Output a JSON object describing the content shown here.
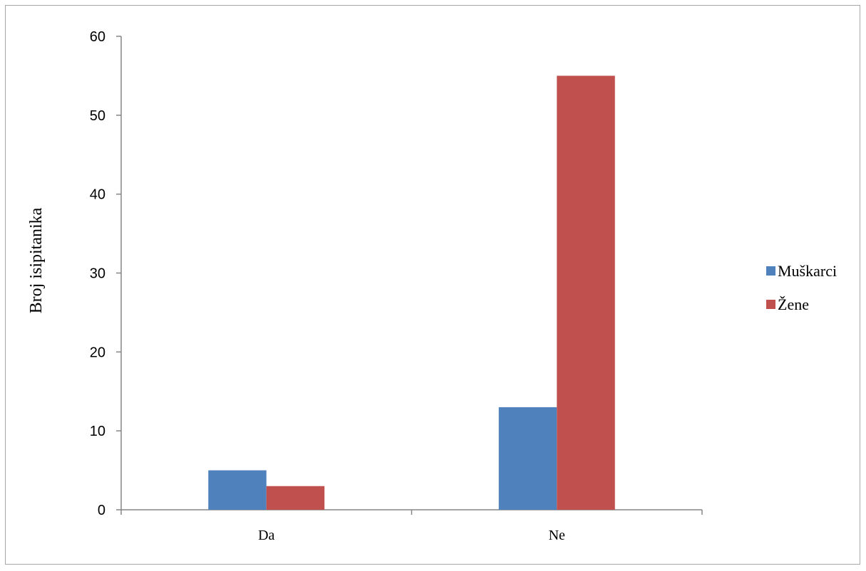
{
  "chart_data": {
    "type": "bar",
    "categories": [
      "Da",
      "Ne"
    ],
    "series": [
      {
        "name": "Muškarci",
        "color": "#4f81bd",
        "values": [
          5,
          13
        ]
      },
      {
        "name": "Žene",
        "color": "#c0504d",
        "values": [
          3,
          55
        ]
      }
    ],
    "title": "",
    "xlabel": "",
    "ylabel": "Broj isipitanika",
    "ylim": [
      0,
      60
    ],
    "yticks": [
      "0",
      "10",
      "20",
      "30",
      "40",
      "50",
      "60"
    ],
    "grid": false,
    "legend_position": "right"
  }
}
